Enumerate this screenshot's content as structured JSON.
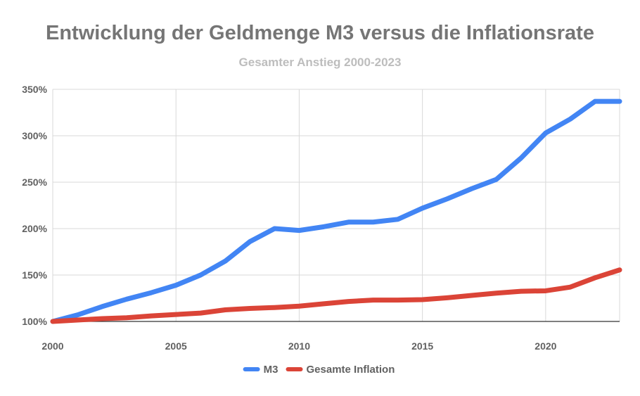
{
  "chart_data": {
    "type": "line",
    "title": "Entwicklung der Geldmenge M3 versus die Inflationsrate",
    "subtitle": "Gesamter Anstieg 2000-2023",
    "xlabel": "",
    "ylabel": "",
    "x": [
      2000,
      2001,
      2002,
      2003,
      2004,
      2005,
      2006,
      2007,
      2008,
      2009,
      2010,
      2011,
      2012,
      2013,
      2014,
      2015,
      2016,
      2017,
      2018,
      2019,
      2020,
      2021,
      2022,
      2023
    ],
    "xlim": [
      2000,
      2023
    ],
    "ylim": [
      100,
      350
    ],
    "x_ticks": [
      "2000",
      "2005",
      "2010",
      "2015",
      "2020"
    ],
    "y_ticks": [
      "100%",
      "150%",
      "200%",
      "250%",
      "300%",
      "350%"
    ],
    "grid": true,
    "legend_position": "bottom",
    "series": [
      {
        "name": "M3",
        "color": "#4285f4",
        "values": [
          100,
          107,
          116,
          124,
          131,
          139,
          150,
          165,
          186,
          200,
          198,
          202,
          207,
          207,
          210,
          222,
          232,
          243,
          253,
          276,
          303,
          318,
          337,
          337
        ]
      },
      {
        "name": "Gesamte Inflation",
        "color": "#db4437",
        "values": [
          100,
          101.5,
          103,
          104,
          106,
          107.5,
          109,
          112.5,
          114,
          115,
          116.5,
          119,
          121.5,
          123,
          123,
          123.5,
          125.5,
          128,
          130.5,
          132.5,
          133,
          137,
          147,
          155.5
        ]
      }
    ]
  }
}
